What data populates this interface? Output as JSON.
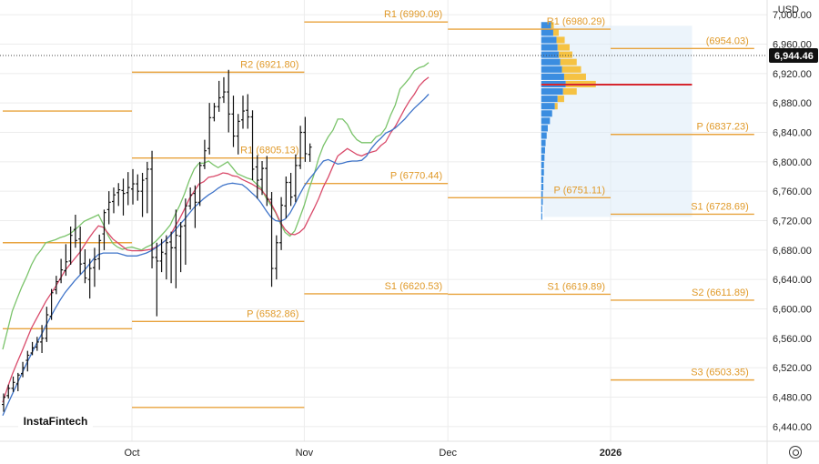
{
  "currency": "USD",
  "logo": "InstaFintech",
  "chart_data": {
    "type": "ohlc",
    "ylim": [
      6420,
      7020
    ],
    "y_ticks": [
      6440,
      6480,
      6520,
      6560,
      6600,
      6640,
      6680,
      6720,
      6760,
      6800,
      6840,
      6880,
      6920,
      6960,
      7000
    ],
    "y_tick_labels": [
      "6,440.00",
      "6,480.00",
      "6,520.00",
      "6,560.00",
      "6,600.00",
      "6,640.00",
      "6,680.00",
      "6,720.00",
      "6,760.00",
      "6,800.00",
      "6,840.00",
      "6,880.00",
      "6,920.00",
      "6,960.00",
      "7,000.00"
    ],
    "x_labels": [
      {
        "label": "Oct",
        "index": 27,
        "bold": false
      },
      {
        "label": "Nov",
        "index": 63,
        "bold": false
      },
      {
        "label": "Dec",
        "index": 93,
        "bold": false
      },
      {
        "label": "2026",
        "index": 127,
        "bold": true
      }
    ],
    "last_price": 6944.46,
    "last_price_label": "6,944.46",
    "pivot_levels": [
      {
        "label": "R1 (6990.09)",
        "value": 6990.09,
        "from": 63,
        "to": 93
      },
      {
        "label": "R1 (6980.29)",
        "value": 6980.29,
        "from": 93,
        "to": 127
      },
      {
        "label": "(6954.03)",
        "value": 6954.03,
        "from": 127,
        "to": 157
      },
      {
        "label": "R2 (6921.80)",
        "value": 6921.8,
        "from": 27,
        "to": 63
      },
      {
        "label": "",
        "value": 6869,
        "from": 0,
        "to": 27
      },
      {
        "label": "R1 (6805.13)",
        "value": 6805.13,
        "from": 27,
        "to": 63
      },
      {
        "label": "P (6837.23)",
        "value": 6837.23,
        "from": 127,
        "to": 157
      },
      {
        "label": "P (6770.44)",
        "value": 6770.44,
        "from": 63,
        "to": 93
      },
      {
        "label": "P (6751.11)",
        "value": 6751.11,
        "from": 93,
        "to": 127
      },
      {
        "label": "S1 (6728.69)",
        "value": 6728.69,
        "from": 127,
        "to": 157
      },
      {
        "label": "",
        "value": 6690,
        "from": 0,
        "to": 27
      },
      {
        "label": "S1 (6620.53)",
        "value": 6620.53,
        "from": 63,
        "to": 93
      },
      {
        "label": "S1 (6619.89)",
        "value": 6619.89,
        "from": 93,
        "to": 127
      },
      {
        "label": "S2 (6611.89)",
        "value": 6611.89,
        "from": 127,
        "to": 157
      },
      {
        "label": "P (6582.86)",
        "value": 6582.86,
        "from": 27,
        "to": 63
      },
      {
        "label": "",
        "value": 6573,
        "from": 0,
        "to": 27
      },
      {
        "label": "S3 (6503.35)",
        "value": 6503.35,
        "from": 127,
        "to": 157
      },
      {
        "label": "",
        "value": 6466,
        "from": 27,
        "to": 63
      }
    ],
    "poc_level": 6905,
    "volume_profile": [
      {
        "price": 6985,
        "blue": 0.18,
        "orange": 0.05
      },
      {
        "price": 6975,
        "blue": 0.22,
        "orange": 0.1
      },
      {
        "price": 6965,
        "blue": 0.28,
        "orange": 0.15
      },
      {
        "price": 6955,
        "blue": 0.3,
        "orange": 0.22
      },
      {
        "price": 6945,
        "blue": 0.32,
        "orange": 0.25
      },
      {
        "price": 6935,
        "blue": 0.35,
        "orange": 0.3
      },
      {
        "price": 6925,
        "blue": 0.38,
        "orange": 0.35
      },
      {
        "price": 6915,
        "blue": 0.42,
        "orange": 0.4
      },
      {
        "price": 6905,
        "blue": 0.45,
        "orange": 0.55
      },
      {
        "price": 6895,
        "blue": 0.4,
        "orange": 0.25
      },
      {
        "price": 6885,
        "blue": 0.3,
        "orange": 0.12
      },
      {
        "price": 6875,
        "blue": 0.25,
        "orange": 0.05
      },
      {
        "price": 6865,
        "blue": 0.2,
        "orange": 0.0
      },
      {
        "price": 6855,
        "blue": 0.16,
        "orange": 0.0
      },
      {
        "price": 6845,
        "blue": 0.12,
        "orange": 0.0
      },
      {
        "price": 6835,
        "blue": 0.1,
        "orange": 0.0
      },
      {
        "price": 6825,
        "blue": 0.08,
        "orange": 0.0
      },
      {
        "price": 6815,
        "blue": 0.07,
        "orange": 0.0
      },
      {
        "price": 6805,
        "blue": 0.06,
        "orange": 0.0
      },
      {
        "price": 6795,
        "blue": 0.05,
        "orange": 0.0
      },
      {
        "price": 6785,
        "blue": 0.05,
        "orange": 0.0
      },
      {
        "price": 6775,
        "blue": 0.04,
        "orange": 0.0
      },
      {
        "price": 6765,
        "blue": 0.04,
        "orange": 0.0
      },
      {
        "price": 6755,
        "blue": 0.03,
        "orange": 0.0
      },
      {
        "price": 6745,
        "blue": 0.03,
        "orange": 0.0
      },
      {
        "price": 6735,
        "blue": 0.02,
        "orange": 0.0
      },
      {
        "price": 6725,
        "blue": 0.02,
        "orange": 0.0
      }
    ],
    "series": [
      {
        "color": "#7ac36a",
        "values": [
          6545,
          6571,
          6597,
          6614,
          6630,
          6644,
          6660,
          6672,
          6680,
          6690,
          6692,
          6694,
          6697,
          6699,
          6702,
          6707,
          6713,
          6719,
          6722,
          6725,
          6728,
          6715,
          6700,
          6689,
          6684,
          6681,
          6683,
          6684,
          6682,
          6680,
          6684,
          6687,
          6692,
          6699,
          6706,
          6714,
          6728,
          6741,
          6757,
          6775,
          6790,
          6798,
          6798,
          6801,
          6796,
          6792,
          6796,
          6800,
          6792,
          6784,
          6781,
          6778,
          6776,
          6770,
          6764,
          6751,
          6741,
          6731,
          6716,
          6704,
          6699,
          6706,
          6723,
          6741,
          6763,
          6782,
          6805,
          6822,
          6834,
          6843,
          6858,
          6858,
          6851,
          6838,
          6830,
          6826,
          6826,
          6826,
          6834,
          6837,
          6846,
          6863,
          6877,
          6899,
          6906,
          6914,
          6924,
          6928,
          6930,
          6935
        ]
      },
      {
        "color": "#d94a6a",
        "values": [
          6473,
          6493,
          6511,
          6527,
          6542,
          6558,
          6574,
          6586,
          6598,
          6610,
          6620,
          6630,
          6641,
          6652,
          6660,
          6668,
          6676,
          6686,
          6696,
          6705,
          6713,
          6711,
          6703,
          6695,
          6690,
          6685,
          6680,
          6679,
          6679,
          6679,
          6680,
          6681,
          6684,
          6688,
          6693,
          6700,
          6712,
          6723,
          6736,
          6750,
          6760,
          6770,
          6773,
          6779,
          6780,
          6782,
          6785,
          6784,
          6781,
          6780,
          6776,
          6773,
          6770,
          6766,
          6762,
          6754,
          6744,
          6732,
          6718,
          6708,
          6702,
          6701,
          6704,
          6710,
          6723,
          6736,
          6750,
          6766,
          6779,
          6794,
          6808,
          6813,
          6818,
          6814,
          6810,
          6808,
          6811,
          6813,
          6815,
          6822,
          6827,
          6839,
          6848,
          6860,
          6872,
          6883,
          6892,
          6903,
          6910,
          6915
        ]
      },
      {
        "color": "#3f74c9",
        "values": [
          6455,
          6470,
          6484,
          6498,
          6512,
          6526,
          6539,
          6552,
          6564,
          6577,
          6589,
          6601,
          6612,
          6622,
          6630,
          6638,
          6645,
          6652,
          6660,
          6668,
          6674,
          6676,
          6676,
          6676,
          6676,
          6674,
          6672,
          6672,
          6672,
          6674,
          6676,
          6679,
          6683,
          6688,
          6693,
          6700,
          6707,
          6715,
          6722,
          6730,
          6738,
          6744,
          6750,
          6755,
          6759,
          6764,
          6768,
          6770,
          6771,
          6770,
          6769,
          6764,
          6758,
          6752,
          6744,
          6734,
          6725,
          6720,
          6719,
          6722,
          6730,
          6742,
          6755,
          6767,
          6776,
          6784,
          6793,
          6801,
          6803,
          6800,
          6797,
          6798,
          6800,
          6801,
          6801,
          6802,
          6808,
          6818,
          6826,
          6832,
          6839,
          6842,
          6846,
          6852,
          6858,
          6866,
          6873,
          6879,
          6885,
          6892
        ]
      }
    ],
    "bars": [
      [
        6470,
        6485,
        6460,
        6480
      ],
      [
        6482,
        6497,
        6478,
        6492
      ],
      [
        6492,
        6508,
        6487,
        6500
      ],
      [
        6498,
        6513,
        6488,
        6510
      ],
      [
        6512,
        6528,
        6507,
        6520
      ],
      [
        6530,
        6543,
        6515,
        6537
      ],
      [
        6540,
        6555,
        6537,
        6547
      ],
      [
        6548,
        6562,
        6543,
        6555
      ],
      [
        6555,
        6578,
        6540,
        6560
      ],
      [
        6560,
        6603,
        6555,
        6592
      ],
      [
        6590,
        6627,
        6585,
        6622
      ],
      [
        6626,
        6645,
        6620,
        6637
      ],
      [
        6640,
        6668,
        6635,
        6653
      ],
      [
        6652,
        6688,
        6645,
        6664
      ],
      [
        6665,
        6712,
        6660,
        6700
      ],
      [
        6708,
        6728,
        6683,
        6693
      ],
      [
        6695,
        6712,
        6647,
        6661
      ],
      [
        6662,
        6681,
        6635,
        6642
      ],
      [
        6640,
        6668,
        6614,
        6655
      ],
      [
        6656,
        6683,
        6630,
        6667
      ],
      [
        6668,
        6701,
        6653,
        6693
      ],
      [
        6702,
        6735,
        6680,
        6731
      ],
      [
        6735,
        6760,
        6715,
        6745
      ],
      [
        6746,
        6765,
        6730,
        6755
      ],
      [
        6758,
        6771,
        6740,
        6762
      ],
      [
        6761,
        6777,
        6727,
        6757
      ],
      [
        6758,
        6786,
        6741,
        6765
      ],
      [
        6763,
        6790,
        6742,
        6770
      ],
      [
        6770,
        6783,
        6747,
        6760
      ],
      [
        6760,
        6785,
        6725,
        6775
      ],
      [
        6777,
        6800,
        6730,
        6790
      ],
      [
        6790,
        6815,
        6655,
        6670
      ],
      [
        6670,
        6690,
        6590,
        6665
      ],
      [
        6665,
        6695,
        6650,
        6677
      ],
      [
        6675,
        6700,
        6640,
        6690
      ],
      [
        6691,
        6705,
        6635,
        6683
      ],
      [
        6683,
        6735,
        6628,
        6700
      ],
      [
        6699,
        6718,
        6650,
        6712
      ],
      [
        6713,
        6750,
        6660,
        6740
      ],
      [
        6740,
        6765,
        6735,
        6755
      ],
      [
        6757,
        6768,
        6710,
        6745
      ],
      [
        6745,
        6800,
        6740,
        6795
      ],
      [
        6795,
        6830,
        6790,
        6815
      ],
      [
        6818,
        6880,
        6810,
        6860
      ],
      [
        6860,
        6880,
        6855,
        6875
      ],
      [
        6875,
        6910,
        6868,
        6887
      ],
      [
        6888,
        6915,
        6880,
        6895
      ],
      [
        6895,
        6925,
        6840,
        6865
      ],
      [
        6865,
        6890,
        6820,
        6835
      ],
      [
        6835,
        6865,
        6810,
        6855
      ],
      [
        6857,
        6890,
        6845,
        6869
      ],
      [
        6870,
        6892,
        6845,
        6861
      ],
      [
        6861,
        6870,
        6775,
        6790
      ],
      [
        6793,
        6809,
        6750,
        6775
      ],
      [
        6776,
        6801,
        6755,
        6791
      ],
      [
        6791,
        6808,
        6740,
        6749
      ],
      [
        6749,
        6759,
        6630,
        6655
      ],
      [
        6655,
        6700,
        6640,
        6690
      ],
      [
        6690,
        6752,
        6680,
        6741
      ],
      [
        6740,
        6780,
        6723,
        6772
      ],
      [
        6772,
        6785,
        6740,
        6752
      ],
      [
        6754,
        6810,
        6745,
        6795
      ],
      [
        6795,
        6849,
        6790,
        6840
      ],
      [
        6840,
        6861,
        6800,
        6811
      ],
      [
        6810,
        6825,
        6800,
        6820
      ]
    ]
  }
}
